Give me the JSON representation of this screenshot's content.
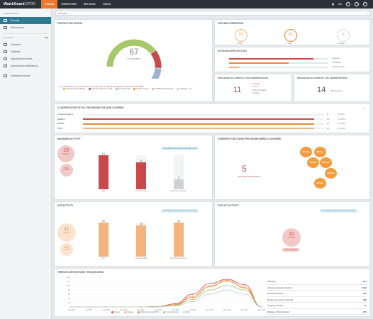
{
  "topbar": {
    "brand": "WatchGuard",
    "brand_suffix": "EPDR",
    "tabs": [
      "STATUS",
      "COMPUTERS",
      "SETTINGS",
      "TASKS"
    ],
    "user": "AS"
  },
  "sidebar": {
    "dashboards_header": "DASHBOARDS",
    "items": [
      "Security",
      "Web access"
    ],
    "mylists_header": "MY LISTS",
    "add": "Add",
    "lists": [
      "Hardware",
      "Software",
      "Unprotected servers",
      "Unprotected workstations...",
      "Scheduled reports"
    ]
  },
  "filter": {
    "period": "Last year"
  },
  "protection": {
    "title": "PROTECTION STATUS",
    "count": "67",
    "count_label": "Computers",
    "legend": [
      "Properly protected (35)",
      "Protection with errors (10)",
      "No license (8)",
      "Install error (4)",
      "Disabled protection (5)",
      "Installing... (4)"
    ],
    "alert": "10 computers have been discovered that are not being managed by WatchGuard EPDR.",
    "colors": [
      "#a5c86a",
      "#c9494b",
      "#9ab3cf",
      "#e8883a",
      "#f0b27d",
      "#c8d0d8"
    ]
  },
  "offline": {
    "title": "OFFLINE COMPUTERS",
    "items": [
      {
        "value": "67",
        "label": "> 3 days"
      },
      {
        "value": "67",
        "label": "> 7 days"
      },
      {
        "value": "0",
        "label": "> 30 days"
      }
    ]
  },
  "outdated": {
    "title": "OUTDATED PROTECTION",
    "rows": [
      {
        "label": "Protection",
        "value": 0.85
      },
      {
        "label": "Knowledge",
        "value": 0.6
      },
      {
        "label": "Pending restart",
        "value": 0.1
      }
    ]
  },
  "allowed": {
    "title": "PROGRAMS ALLOWED BY THE ADMINISTRATOR",
    "count": "11",
    "lines": [
      "5 malware",
      "3 PUPs",
      "1 being classified",
      "2 exploits"
    ]
  },
  "blocked": {
    "title": "PROGRAMS BLOCKED BY THE ADMINISTRATOR",
    "count": "14",
    "label": "Blocked items"
  },
  "classification": {
    "title": "CLASSIFICATION OF ALL PROGRAMS RUN AND SCANNED",
    "rows": [
      {
        "label": "Trusted programs",
        "value": "0",
        "pct": "(0.00%)",
        "fill": 0,
        "color": "#a5c86a"
      },
      {
        "label": "Malware",
        "value": "11",
        "pct": "(33.33%)",
        "fill": 0.96,
        "color": "#c9494b"
      },
      {
        "label": "Exploits",
        "value": "11",
        "pct": "(33.33%)",
        "fill": 0.96,
        "color": "#e8883a"
      },
      {
        "label": "PUPs",
        "value": "11",
        "pct": "(33.33%)",
        "fill": 0.96,
        "color": "#f5b37f"
      }
    ]
  },
  "malware": {
    "title": "MALWARE ACTIVITY",
    "note": "This data corresponds to the last month",
    "big": "10",
    "big_label": "Incidents",
    "small": "on 2",
    "small_label": "computers",
    "bars": [
      {
        "label": "Run",
        "value": "10",
        "fill": 1.0
      },
      {
        "label": "Accessed data",
        "value": "8",
        "fill": 0.8
      },
      {
        "label": "External connections",
        "value": "3",
        "fill": 0.3
      }
    ]
  },
  "currentblocked": {
    "title": "CURRENTLY BLOCKED PROGRAMS BEING CLASSIFIED",
    "count": "5",
    "label": "BLOCKED PROGRAMS",
    "bubbles": [
      "Malware",
      "Malware",
      "Malware",
      "Malware",
      "Malware",
      "Malware"
    ]
  },
  "pup": {
    "title": "PUP ACTIVITY",
    "note": "This data corresponds to the last month",
    "big": "11",
    "big_label": "Incidents",
    "small": "on 2",
    "small_label": "computers",
    "bars": [
      {
        "label": "Run",
        "value": "11",
        "fill": 1.0
      },
      {
        "label": "Accessed data",
        "value": "10",
        "fill": 0.91
      },
      {
        "label": "External connections",
        "value": "11",
        "fill": 1.0
      }
    ]
  },
  "exploit": {
    "title": "EXPLOIT ACTIVITY",
    "note": "This data corresponds to the last month",
    "big": "10",
    "big_label": "Incidents",
    "small": "on 8 computers"
  },
  "threats": {
    "title": "THREATS DETECTED BY THE ANTIVIRUS",
    "yticks": [
      "140",
      "120",
      "100",
      "80",
      "60",
      "40",
      "20",
      "0"
    ],
    "xticks": [
      "Jun 2020",
      "Jul 2020",
      "Aug 2020",
      "Sep 2020",
      "Oct 2020",
      "Nov 2020",
      "Dec 2020",
      "Jan 2021",
      "Feb 2021",
      "Mar 2021",
      "Apr 2021",
      "May 2021"
    ],
    "legend": [
      "Viruses",
      "Spyware",
      "Hacking tools and PUPs",
      "Suspicious items",
      "Other"
    ],
    "legend_colors": [
      "#c9494b",
      "#f0b27d",
      "#e8883a",
      "#a5c86a",
      "#c8cdd2"
    ],
    "list": [
      {
        "label": "Phishing",
        "value": "801"
      },
      {
        "label": "Intrusion attempts blocked",
        "value": "1,043"
      },
      {
        "label": "Devices blocked",
        "value": "287"
      },
      {
        "label": "Dangerous actions blocked",
        "value": "289"
      },
      {
        "label": "Tracking cookies",
        "value": "30"
      },
      {
        "label": "Malware URLs blocked",
        "value": "281"
      }
    ]
  },
  "chart_data": {
    "type": "line",
    "x": [
      "Jun 2020",
      "Jul 2020",
      "Aug 2020",
      "Sep 2020",
      "Oct 2020",
      "Nov 2020",
      "Dec 2020",
      "Jan 2021",
      "Feb 2021",
      "Mar 2021",
      "Apr 2021",
      "May 2021"
    ],
    "ylim": [
      0,
      140
    ],
    "series": [
      {
        "name": "Viruses",
        "values": [
          0,
          0,
          0,
          0,
          0,
          2,
          15,
          60,
          110,
          130,
          105,
          0
        ]
      },
      {
        "name": "Spyware",
        "values": [
          0,
          0,
          0,
          0,
          0,
          1,
          12,
          50,
          100,
          120,
          95,
          0
        ]
      },
      {
        "name": "Hacking tools and PUPs",
        "values": [
          0,
          0,
          0,
          0,
          0,
          1,
          10,
          45,
          95,
          125,
          90,
          0
        ]
      },
      {
        "name": "Suspicious items",
        "values": [
          0,
          0,
          0,
          0,
          0,
          1,
          8,
          35,
          80,
          100,
          80,
          0
        ]
      },
      {
        "name": "Other",
        "values": [
          0,
          0,
          0,
          0,
          0,
          0,
          5,
          25,
          60,
          80,
          60,
          0
        ]
      }
    ]
  }
}
